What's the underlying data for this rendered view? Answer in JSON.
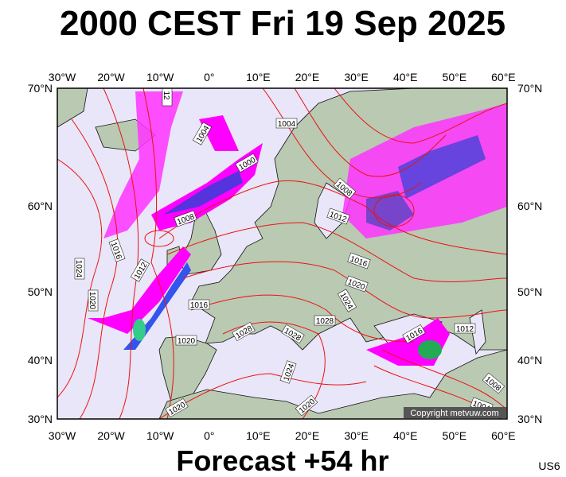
{
  "title": "2000 CEST Fri 19 Sep 2025",
  "longitude_labels": [
    "30°W",
    "20°W",
    "10°W",
    "0°",
    "10°E",
    "20°E",
    "30°E",
    "40°E",
    "50°E",
    "60°E"
  ],
  "latitude_labels": [
    "70°N",
    "60°N",
    "50°N",
    "40°N",
    "30°N"
  ],
  "isobar_labels": [
    "12",
    "1004",
    "1004",
    "1000",
    "1008",
    "1012",
    "1008",
    "1016",
    "1012",
    "1024",
    "1020",
    "1016",
    "1020",
    "1024",
    "1016",
    "1028",
    "1028",
    "1028",
    "1020",
    "1016",
    "1012",
    "1024",
    "1020",
    "1020",
    "1004",
    "1008"
  ],
  "copyright": "Copyright metvuw.com",
  "footer": "Forecast +54 hr",
  "model": "US6"
}
